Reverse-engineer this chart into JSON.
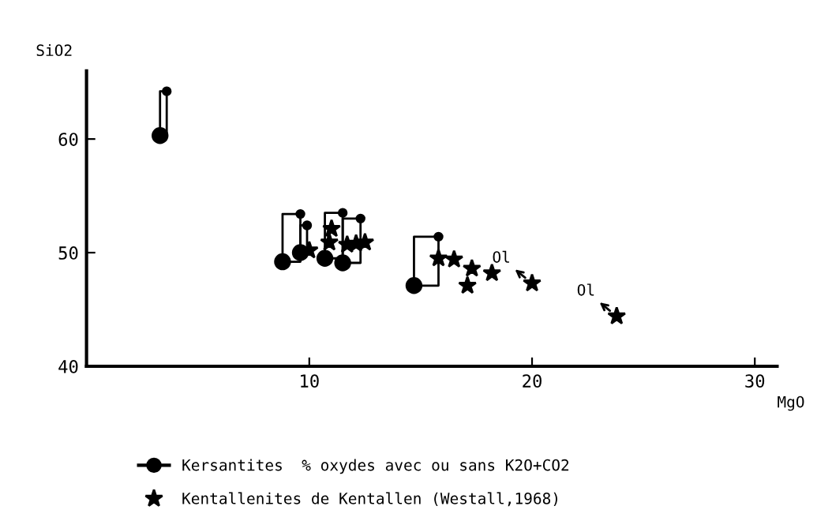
{
  "chart_data": {
    "type": "scatter",
    "xlabel": "MgO",
    "ylabel": "SiO2",
    "xlim": [
      0,
      31
    ],
    "ylim": [
      40,
      66
    ],
    "xticks": [
      10,
      20,
      30
    ],
    "yticks": [
      40,
      50,
      60
    ],
    "grid": false,
    "legend": "bottom",
    "series": [
      {
        "name": "Kersantites  % oxydes avec ou sans K2O+CO2",
        "color": "#000000",
        "marker": "circle",
        "x": [
          3.3,
          8.8,
          9.6,
          10.7,
          11.5,
          14.7
        ],
        "values": [
          60.3,
          49.2,
          50.0,
          49.5,
          49.1,
          47.1
        ]
      },
      {
        "color": "#000000",
        "marker": "circle",
        "x": [
          3.6,
          9.6,
          9.9,
          11.5,
          12.3,
          15.8
        ],
        "values": [
          64.2,
          53.4,
          52.4,
          53.5,
          53.0,
          51.4
        ]
      },
      {
        "name": "Kentallenites de Kentallen (Westall,1968)",
        "color": "#000000",
        "marker": "star",
        "x": [
          10.0,
          11.0,
          10.9,
          11.7,
          12.1,
          12.5,
          15.8,
          16.5,
          17.3,
          17.1,
          18.2,
          20.0,
          23.8
        ],
        "values": [
          50.2,
          52.1,
          50.9,
          50.7,
          50.8,
          50.9,
          49.5,
          49.4,
          48.6,
          47.1,
          48.2,
          47.3,
          44.4
        ]
      }
    ],
    "annotations": [
      {
        "text": "Ol",
        "x": 20.0,
        "y": 47.3
      },
      {
        "text": "Ol",
        "x": 23.8,
        "y": 44.4
      }
    ]
  }
}
